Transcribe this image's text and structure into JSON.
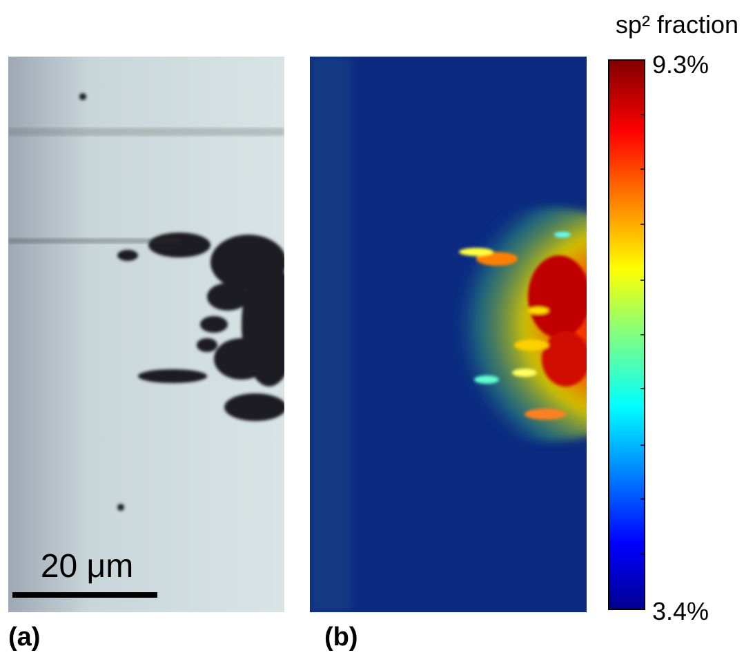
{
  "panels": [
    {
      "label": "(a)",
      "scale_bar": "20 μm"
    },
    {
      "label": "(b)"
    }
  ],
  "colorbar": {
    "title": "sp² fraction",
    "max_label": "9.3%",
    "min_label": "3.4%"
  }
}
